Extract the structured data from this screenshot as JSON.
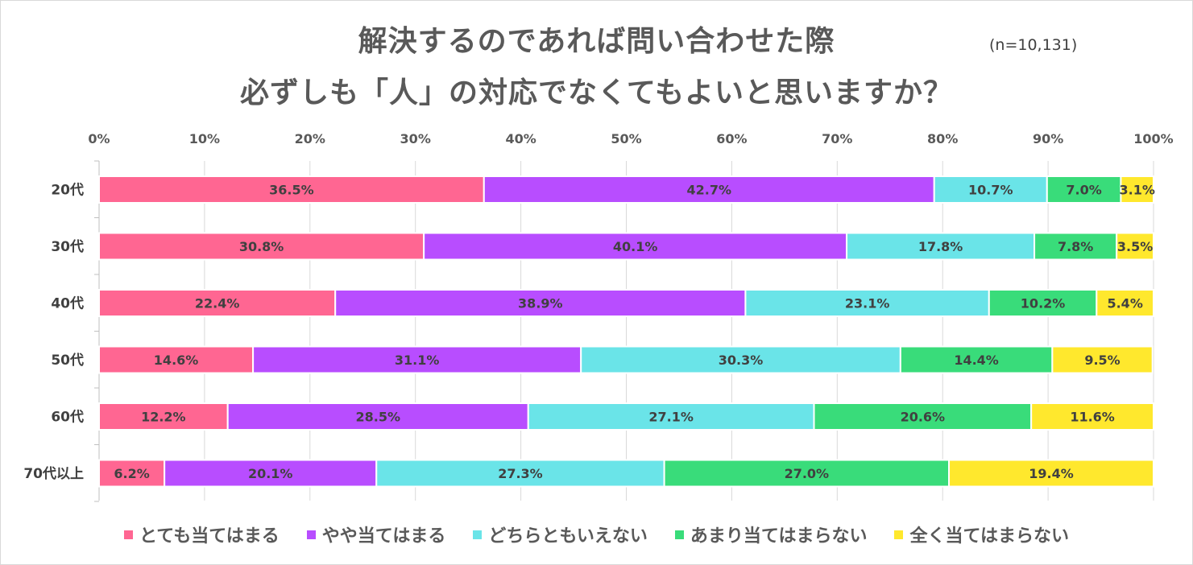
{
  "sample_size": "(n=10,131)",
  "chart_data": {
    "type": "bar",
    "orientation": "horizontal",
    "stacked": true,
    "title": [
      "解決するのであれば問い合わせた際",
      "必ずしも「人」の対応でなくてもよいと思いますか？"
    ],
    "categories": [
      "20代",
      "30代",
      "40代",
      "50代",
      "60代",
      "70代以上"
    ],
    "series": [
      {
        "name": "とても当てはまる",
        "color": "#ff6692",
        "values": [
          36.5,
          30.8,
          22.4,
          14.6,
          12.2,
          6.2
        ]
      },
      {
        "name": "やや当てはまる",
        "color": "#b84dff",
        "values": [
          42.7,
          40.1,
          38.9,
          31.1,
          28.5,
          20.1
        ]
      },
      {
        "name": "どちらともいえない",
        "color": "#6ae4e8",
        "values": [
          10.7,
          17.8,
          23.1,
          30.3,
          27.1,
          27.3
        ]
      },
      {
        "name": "あまり当てはまらない",
        "color": "#39dc7a",
        "values": [
          7.0,
          7.8,
          10.2,
          14.4,
          20.6,
          27.0
        ]
      },
      {
        "name": "全く当てはまらない",
        "color": "#ffe82d",
        "values": [
          3.1,
          3.5,
          5.4,
          9.5,
          11.6,
          19.4
        ]
      }
    ],
    "value_labels": [
      [
        "36.5%",
        "42.7%",
        "10.7%",
        "7.0%",
        "3.1%"
      ],
      [
        "30.8%",
        "40.1%",
        "17.8%",
        "7.8%",
        "3.5%"
      ],
      [
        "22.4%",
        "38.9%",
        "23.1%",
        "10.2%",
        "5.4%"
      ],
      [
        "14.6%",
        "31.1%",
        "30.3%",
        "14.4%",
        "9.5%"
      ],
      [
        "12.2%",
        "28.5%",
        "27.1%",
        "20.6%",
        "11.6%"
      ],
      [
        "6.2%",
        "20.1%",
        "27.3%",
        "27.0%",
        "19.4%"
      ]
    ],
    "x_ticks": [
      "0%",
      "10%",
      "20%",
      "30%",
      "40%",
      "50%",
      "60%",
      "70%",
      "80%",
      "90%",
      "100%"
    ],
    "xlim": [
      0,
      100
    ],
    "grid": true,
    "legend_position": "bottom"
  }
}
